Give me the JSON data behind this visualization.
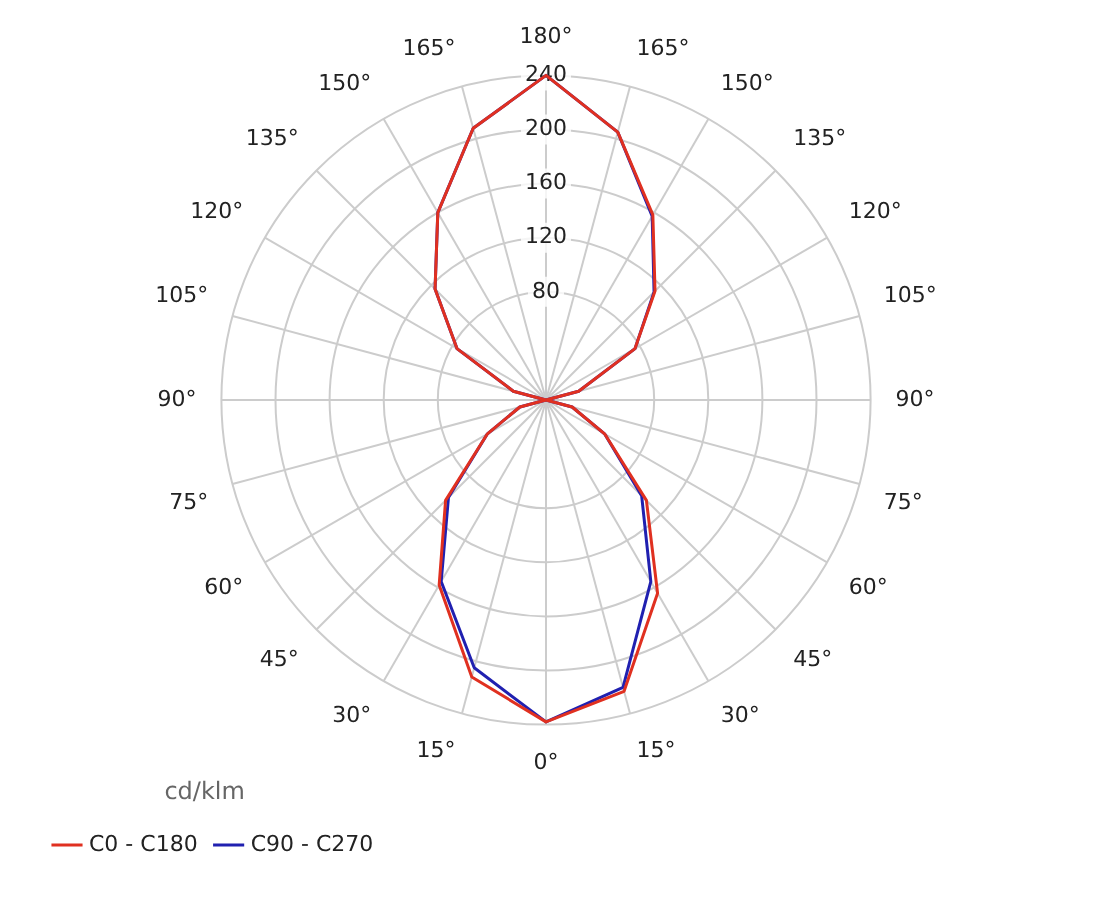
{
  "chart_data": {
    "type": "radar",
    "legend_title": "cd/klm",
    "legend": "bottom left",
    "grid": true,
    "marker": "none",
    "line_style": "solid",
    "categories": [
      "180°",
      "165°",
      "150°",
      "135°",
      "120°",
      "105°",
      "90°",
      "75°",
      "60°",
      "45°",
      "30°",
      "15°",
      "0°",
      "15°",
      "30°",
      "45°",
      "60°",
      "75°",
      "90°",
      "105°",
      "120°",
      "135°",
      "150°",
      "165°"
    ],
    "ylim": [
      0,
      240
    ],
    "yticks": [
      80,
      120,
      160,
      200,
      240
    ],
    "series": [
      {
        "name": "C0 - C180",
        "color": "#e03020",
        "values": [
          240,
          205,
          158,
          114,
          76,
          25,
          0,
          20,
          50,
          105,
          165,
          223,
          238,
          212,
          158,
          105,
          50,
          20,
          0,
          25,
          76,
          116,
          160,
          208
        ]
      },
      {
        "name": "C90 - C270",
        "color": "#2020b0",
        "values": [
          240,
          205,
          157,
          113,
          76,
          25,
          0,
          20,
          50,
          100,
          155,
          220,
          238,
          205,
          155,
          102,
          50,
          20,
          0,
          25,
          76,
          116,
          160,
          208
        ]
      }
    ]
  }
}
